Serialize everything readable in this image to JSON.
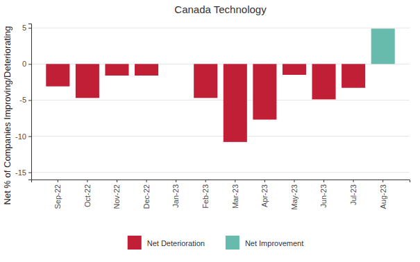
{
  "chart_data": {
    "type": "bar",
    "title": "Canada Technology",
    "y_label": "Net % of Companies Improving/Deteriorating",
    "categories": [
      "Sep-22",
      "Oct-22",
      "Nov-22",
      "Dec-22",
      "Jan-23",
      "Feb-23",
      "Mar-23",
      "Apr-23",
      "May-23",
      "Jun-23",
      "Jul-23",
      "Aug-23"
    ],
    "series": [
      {
        "name": "Net Deterioration",
        "color": "#c11f36",
        "values": [
          -3.1,
          -4.7,
          -1.6,
          -1.6,
          0,
          -4.7,
          -10.8,
          -7.7,
          -1.5,
          -4.9,
          -3.3,
          null
        ]
      },
      {
        "name": "Net Improvement",
        "color": "#66bbac",
        "values": [
          null,
          null,
          null,
          null,
          null,
          null,
          null,
          null,
          null,
          null,
          null,
          4.9
        ]
      }
    ],
    "ylim": [
      -16,
      5.6
    ],
    "yticks": [
      -15,
      -10,
      -5,
      0,
      5
    ],
    "grid": true,
    "legend": "bottom"
  }
}
